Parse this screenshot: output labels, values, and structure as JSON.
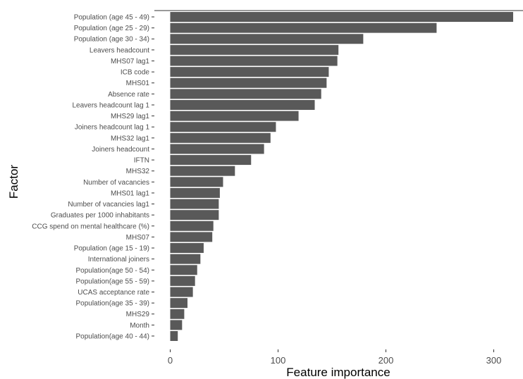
{
  "chart_data": {
    "type": "bar",
    "orientation": "horizontal",
    "xlabel": "Feature importance",
    "ylabel": "Factor",
    "xlim": [
      0,
      325
    ],
    "xticks": [
      0,
      100,
      200,
      300
    ],
    "grid": false,
    "bar_color": "#595959",
    "categories": [
      "Population (age 45 - 49)",
      "Population (age 25 - 29)",
      "Population (age 30 - 34)",
      "Leavers headcount",
      "MHS07 lag1",
      "ICB code",
      "MHS01",
      "Absence rate",
      "Leavers headcount lag 1",
      "MHS29 lag1",
      "Joiners headcount lag 1",
      "MHS32 lag1",
      "Joiners headcount",
      "IFTN",
      "MHS32",
      "Number of vacancies",
      "MHS01 lag1",
      "Number of vacancies lag1",
      "Graduates per 1000 inhabitants",
      "CCG spend on mental healthcare (%)",
      "MHS07",
      "Population (age 15 - 19)",
      "International joiners",
      "Population(age 50 - 54)",
      "Population(age 55 - 59)",
      "UCAS acceptance rate",
      "Population(age 35 - 39)",
      "MHS29",
      "Month",
      "Population(age 40 - 44)"
    ],
    "values": [
      318,
      247,
      179,
      156,
      155,
      147,
      145,
      140,
      134,
      119,
      98,
      93,
      87,
      75,
      60,
      49,
      46,
      45,
      45,
      40,
      39,
      31,
      28,
      25,
      23,
      21,
      16,
      13,
      11,
      7
    ]
  }
}
